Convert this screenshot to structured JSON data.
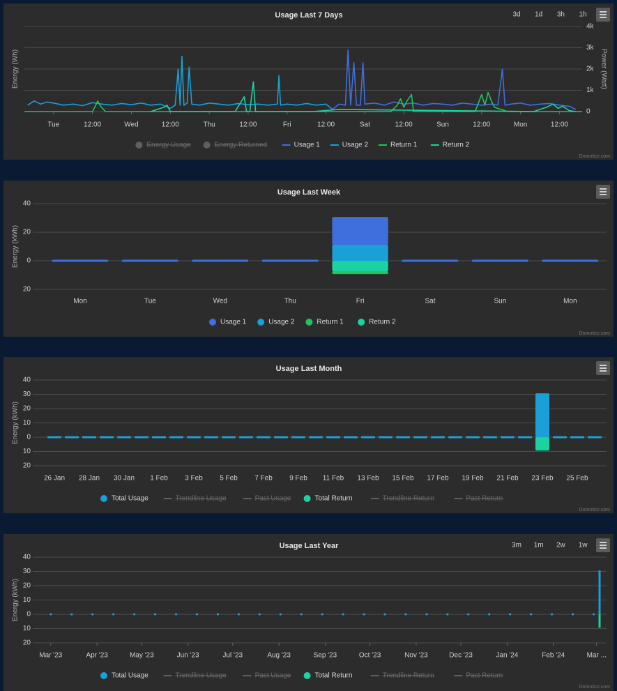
{
  "chart_data": [
    {
      "type": "line",
      "title": "Usage Last 7 Days",
      "buttons": [
        "3d",
        "1d",
        "3h",
        "1h"
      ],
      "ylabel": "Energy (Wh)",
      "y2label": "Power (Watt)",
      "credits": "Domoticz.com",
      "grid": true,
      "xlim": [
        -9,
        163
      ],
      "xticks": [
        {
          "value": 0,
          "label": "Tue"
        },
        {
          "value": 12,
          "label": "12:00"
        },
        {
          "value": 24,
          "label": "Wed"
        },
        {
          "value": 36,
          "label": "12:00"
        },
        {
          "value": 48,
          "label": "Thu"
        },
        {
          "value": 60,
          "label": "12:00"
        },
        {
          "value": 72,
          "label": "Fri"
        },
        {
          "value": 84,
          "label": "12:00"
        },
        {
          "value": 96,
          "label": "Sat"
        },
        {
          "value": 108,
          "label": "12:00"
        },
        {
          "value": 120,
          "label": "Sun"
        },
        {
          "value": 132,
          "label": "12:00"
        },
        {
          "value": 144,
          "label": "Mon"
        },
        {
          "value": 156,
          "label": "12:00"
        }
      ],
      "y2lim": [
        0,
        4000
      ],
      "y2ticks": [
        0,
        {
          "value": 1000,
          "label": "1k"
        },
        {
          "value": 2000,
          "label": "2k"
        },
        {
          "value": 3000,
          "label": "3k"
        },
        {
          "value": 4000,
          "label": "4k"
        }
      ],
      "series": [
        {
          "name": "Energy Usage",
          "visible": false
        },
        {
          "name": "Energy Returned",
          "visible": false
        },
        {
          "name": "Usage 1",
          "color": "#3f6fdc",
          "axis": "y2",
          "x": [
            86,
            88,
            90,
            90.8,
            91.6,
            92.6,
            93.4,
            94.6,
            95.4,
            96,
            99,
            102,
            105,
            108,
            111,
            114,
            117,
            120,
            123,
            126,
            129,
            132,
            135,
            137,
            138.4,
            139.2,
            141,
            144,
            147,
            150,
            153,
            156,
            159,
            161
          ],
          "values": [
            100,
            350,
            300,
            2900,
            300,
            2300,
            300,
            300,
            2300,
            350,
            400,
            300,
            450,
            350,
            400,
            300,
            380,
            350,
            300,
            400,
            350,
            300,
            350,
            300,
            2000,
            300,
            350,
            400,
            300,
            350,
            380,
            300,
            250,
            100
          ]
        },
        {
          "name": "Usage 2",
          "color": "#1a9fd6",
          "axis": "y2",
          "x": [
            -8,
            -6,
            -4,
            -2,
            0,
            3,
            6,
            9,
            12,
            15,
            18,
            21,
            24,
            27,
            30,
            33,
            36,
            37.5,
            38.4,
            39,
            39.6,
            40.2,
            41.2,
            41.8,
            42.6,
            45,
            48,
            51,
            54,
            57,
            60,
            63,
            66,
            69,
            69.5,
            70,
            72,
            75,
            78,
            81,
            84,
            86
          ],
          "values": [
            300,
            500,
            350,
            450,
            400,
            300,
            350,
            280,
            420,
            350,
            300,
            380,
            320,
            400,
            300,
            350,
            150,
            300,
            2000,
            300,
            2600,
            300,
            400,
            2100,
            350,
            300,
            400,
            350,
            300,
            380,
            320,
            350,
            300,
            350,
            1700,
            300,
            350,
            300,
            380,
            300,
            350,
            100
          ]
        },
        {
          "name": "Return 1",
          "color": "#25c25e",
          "axis": "y2",
          "x": [
            -9,
            12,
            13,
            13.6,
            14.5,
            16,
            24,
            100,
            104,
            106,
            107,
            108,
            109,
            110.4,
            111,
            114,
            130,
            131,
            132,
            133,
            134,
            135,
            136,
            140,
            163
          ],
          "values": [
            0,
            0,
            300,
            500,
            250,
            0,
            0,
            0,
            0,
            300,
            600,
            200,
            500,
            800,
            0,
            0,
            0,
            400,
            800,
            300,
            900,
            500,
            200,
            0,
            0
          ]
        },
        {
          "name": "Return 2",
          "color": "#1ad3a0",
          "axis": "y2",
          "x": [
            30,
            34,
            35,
            36,
            40,
            56,
            58.8,
            59.5,
            60.5,
            61.6,
            62.3,
            64,
            80,
            88,
            148,
            152,
            154,
            155.6,
            157,
            159,
            161
          ],
          "values": [
            0,
            200,
            300,
            0,
            0,
            0,
            700,
            0,
            0,
            1400,
            0,
            0,
            0,
            100,
            0,
            200,
            350,
            150,
            250,
            50,
            0
          ]
        }
      ]
    },
    {
      "type": "bar",
      "title": "Usage Last Week",
      "ylabel": "Energy (kWh)",
      "credits": "Domoticz.com",
      "grid": true,
      "stacked": true,
      "categories": [
        "Mon",
        "Tue",
        "Wed",
        "Thu",
        "Fri",
        "Sat",
        "Sun",
        "Mon"
      ],
      "ylim": [
        -20,
        40
      ],
      "yticks": [
        40,
        20,
        0,
        {
          "value": -20,
          "label": "20"
        }
      ],
      "series": [
        {
          "name": "Usage 1",
          "color": "#3f6fdc",
          "values": [
            0,
            0,
            0,
            0,
            19.5,
            0,
            0,
            0
          ]
        },
        {
          "name": "Usage 2",
          "color": "#1a9fd6",
          "values": [
            0,
            0,
            0,
            0,
            11.2,
            0,
            0,
            0
          ]
        },
        {
          "name": "Return 1",
          "color": "#25c25e",
          "values": [
            0,
            0,
            0,
            0,
            -2,
            0,
            0,
            0
          ]
        },
        {
          "name": "Return 2",
          "color": "#1ad3a0",
          "values": [
            0,
            0,
            0,
            0,
            -7.3,
            0,
            0,
            0
          ]
        }
      ]
    },
    {
      "type": "bar",
      "title": "Usage Last Month",
      "ylabel": "Energy (kWh)",
      "credits": "Domoticz.com",
      "grid": true,
      "stacked": true,
      "categories": [
        "26 Jan",
        null,
        "28 Jan",
        null,
        "30 Jan",
        null,
        "1 Feb",
        null,
        "3 Feb",
        null,
        "5 Feb",
        null,
        "7 Feb",
        null,
        "9 Feb",
        null,
        "11 Feb",
        null,
        "13 Feb",
        null,
        "15 Feb",
        null,
        "17 Feb",
        null,
        "19 Feb",
        null,
        "21 Feb",
        null,
        "23 Feb",
        null,
        "25 Feb",
        null
      ],
      "ylim": [
        -20,
        40
      ],
      "yticks": [
        40,
        30,
        20,
        10,
        0,
        {
          "value": -10,
          "label": "10"
        },
        {
          "value": -20,
          "label": "20"
        }
      ],
      "series": [
        {
          "name": "Total Usage",
          "color": "#1a9fd6",
          "values": [
            0,
            0,
            0,
            0,
            0,
            0,
            0,
            0,
            0,
            0,
            0,
            0,
            0,
            0,
            0,
            0,
            0,
            0,
            0,
            0,
            0,
            0,
            0,
            0,
            0,
            0,
            0,
            0,
            30.7,
            0,
            0,
            0
          ]
        },
        {
          "name": "Trendline Usage",
          "visible": false
        },
        {
          "name": "Past Usage",
          "visible": false
        },
        {
          "name": "Total Return",
          "color": "#1ad3a0",
          "values": [
            0,
            0,
            0,
            0,
            0,
            0,
            0,
            0,
            0,
            0,
            0,
            0,
            0,
            0,
            0,
            0,
            0,
            0,
            0,
            0,
            0,
            0,
            0,
            0,
            0,
            0,
            0,
            0,
            -9.3,
            0,
            0,
            0
          ]
        },
        {
          "name": "Trendline Return",
          "visible": false
        },
        {
          "name": "Past Return",
          "visible": false
        }
      ]
    },
    {
      "type": "bar",
      "title": "Usage Last Year",
      "buttons": [
        "3m",
        "1m",
        "2w",
        "1w"
      ],
      "ylabel": "Energy (kWh)",
      "credits": "Domoticz.com",
      "grid": true,
      "stacked": true,
      "x": [
        0,
        14,
        28,
        42,
        56,
        70,
        84,
        98,
        112,
        126,
        140,
        154,
        168,
        182,
        196,
        210,
        224,
        238,
        252,
        266,
        280,
        294,
        308,
        322,
        336,
        350,
        364,
        368
      ],
      "xlim": [
        -6,
        375
      ],
      "xticks": [
        {
          "value": 0,
          "label": "Mar '23"
        },
        {
          "value": 31,
          "label": "Apr '23"
        },
        {
          "value": 61,
          "label": "May '23"
        },
        {
          "value": 92,
          "label": "Jun '23"
        },
        {
          "value": 122,
          "label": "Jul '23"
        },
        {
          "value": 153,
          "label": "Aug '23"
        },
        {
          "value": 184,
          "label": "Sep '23"
        },
        {
          "value": 214,
          "label": "Oct '23"
        },
        {
          "value": 245,
          "label": "Nov '23"
        },
        {
          "value": 275,
          "label": "Dec '23"
        },
        {
          "value": 306,
          "label": "Jan '24"
        },
        {
          "value": 337,
          "label": "Feb '24"
        },
        {
          "value": 366,
          "label": "Mar ..."
        }
      ],
      "ylim": [
        -20,
        40
      ],
      "yticks": [
        40,
        30,
        20,
        10,
        0,
        {
          "value": -10,
          "label": "10"
        },
        {
          "value": -20,
          "label": "20"
        }
      ],
      "series": [
        {
          "name": "Total Usage",
          "color": "#1a9fd6",
          "values": [
            0,
            0,
            0,
            0,
            0,
            0,
            0,
            0,
            0,
            0,
            0,
            0,
            0,
            0,
            0,
            0,
            0,
            0,
            0,
            0,
            0,
            0,
            0,
            0,
            0,
            0,
            0,
            30.7
          ]
        },
        {
          "name": "Trendline Usage",
          "visible": false
        },
        {
          "name": "Past Usage",
          "visible": false
        },
        {
          "name": "Total Return",
          "color": "#1ad3a0",
          "values": [
            0,
            0,
            0,
            0,
            0,
            0,
            0,
            0,
            0,
            0,
            0,
            0,
            0,
            0,
            0,
            0,
            0,
            0,
            0,
            0,
            0,
            0,
            0,
            0,
            0,
            0,
            0,
            -9.3
          ]
        },
        {
          "name": "Trendline Return",
          "visible": false
        },
        {
          "name": "Past Return",
          "visible": false
        }
      ]
    }
  ]
}
